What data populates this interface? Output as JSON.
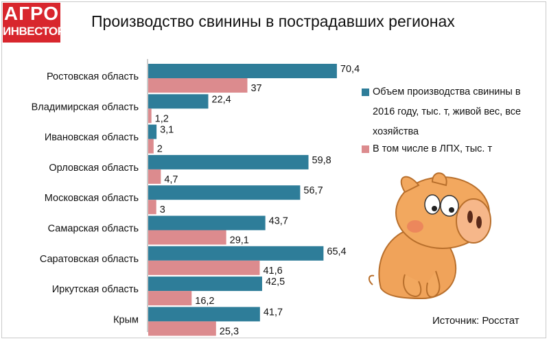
{
  "logo": {
    "line1": "АГРО",
    "line2": "ИНВЕСТОР"
  },
  "source": "Источник: Росстат",
  "chart_data": {
    "type": "bar",
    "orientation": "horizontal",
    "title": "Производство свинины в пострадавших регионах",
    "categories": [
      "Ростовская область",
      "Владимирская область",
      "Ивановская область",
      "Орловская область",
      "Московская область",
      "Самарская область",
      "Саратовская область",
      "Иркутская область",
      "Крым"
    ],
    "series": [
      {
        "name": "Объем производства свинины в 2016 году, тыс. т, живой вес, все хозяйства",
        "color": "#2e7d99",
        "values": [
          70.4,
          22.4,
          3.1,
          59.8,
          56.7,
          43.7,
          65.4,
          42.5,
          41.7
        ],
        "labels": [
          "70,4",
          "22,4",
          "3,1",
          "59,8",
          "56,7",
          "43,7",
          "65,4",
          "42,5",
          "41,7"
        ]
      },
      {
        "name": "В том числе в ЛПХ, тыс. т",
        "color": "#dc8b8e",
        "values": [
          37,
          1.2,
          2,
          4.7,
          3,
          29.1,
          41.6,
          16.2,
          25.3
        ],
        "labels": [
          "37",
          "1,2",
          "2",
          "4,7",
          "3",
          "29,1",
          "41,6",
          "16,2",
          "25,3"
        ]
      }
    ],
    "legend": "right",
    "grid": false
  }
}
